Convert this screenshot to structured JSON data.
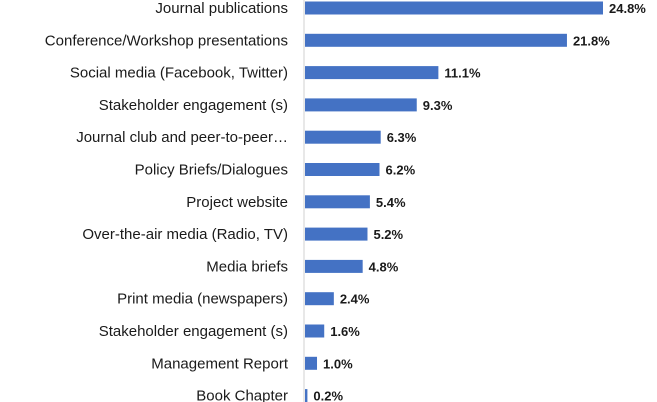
{
  "chart_data": {
    "type": "bar",
    "orientation": "horizontal",
    "title": "",
    "xlabel": "",
    "ylabel": "",
    "categories": [
      "Journal publications",
      "Conference/Workshop presentations",
      "Social media (Facebook, Twitter)",
      "Stakeholder engagement (s)",
      "Journal club and peer-to-peer…",
      "Policy Briefs/Dialogues",
      "Project website",
      "Over-the-air media (Radio, TV)",
      "Media briefs",
      "Print media (newspapers)",
      "Stakeholder engagement (s)",
      "Management Report",
      "Book Chapter"
    ],
    "values": [
      24.8,
      21.8,
      11.1,
      9.3,
      6.3,
      6.2,
      5.4,
      5.2,
      4.8,
      2.4,
      1.6,
      1.0,
      0.2
    ],
    "value_labels": [
      "24.8%",
      "21.8%",
      "11.1%",
      "9.3%",
      "6.3%",
      "6.2%",
      "5.4%",
      "5.2%",
      "4.8%",
      "2.4%",
      "1.6%",
      "1.0%",
      "0.2%"
    ],
    "xlim": [
      0,
      24.8
    ],
    "grid": false,
    "legend": "none",
    "bar_color": "#4472c4"
  }
}
